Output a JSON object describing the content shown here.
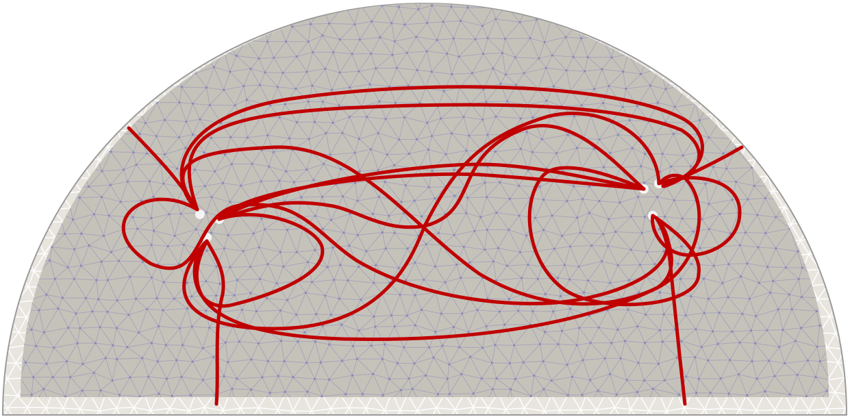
{
  "colors": {
    "background": "#ffffff",
    "outer_band": "#e8e5df",
    "outer_band_mesh": "#ffffff",
    "outline": "#9a9a9a",
    "inner_fill": "#c5c2ba",
    "inner_mesh": "#6f6fb8",
    "trajectory": "#c00000",
    "hole": "#f4f4f4"
  },
  "figure": {
    "shape": "semicircle",
    "mesh": "triangular",
    "trajectory_count": 14,
    "vortex_markers": 4
  }
}
